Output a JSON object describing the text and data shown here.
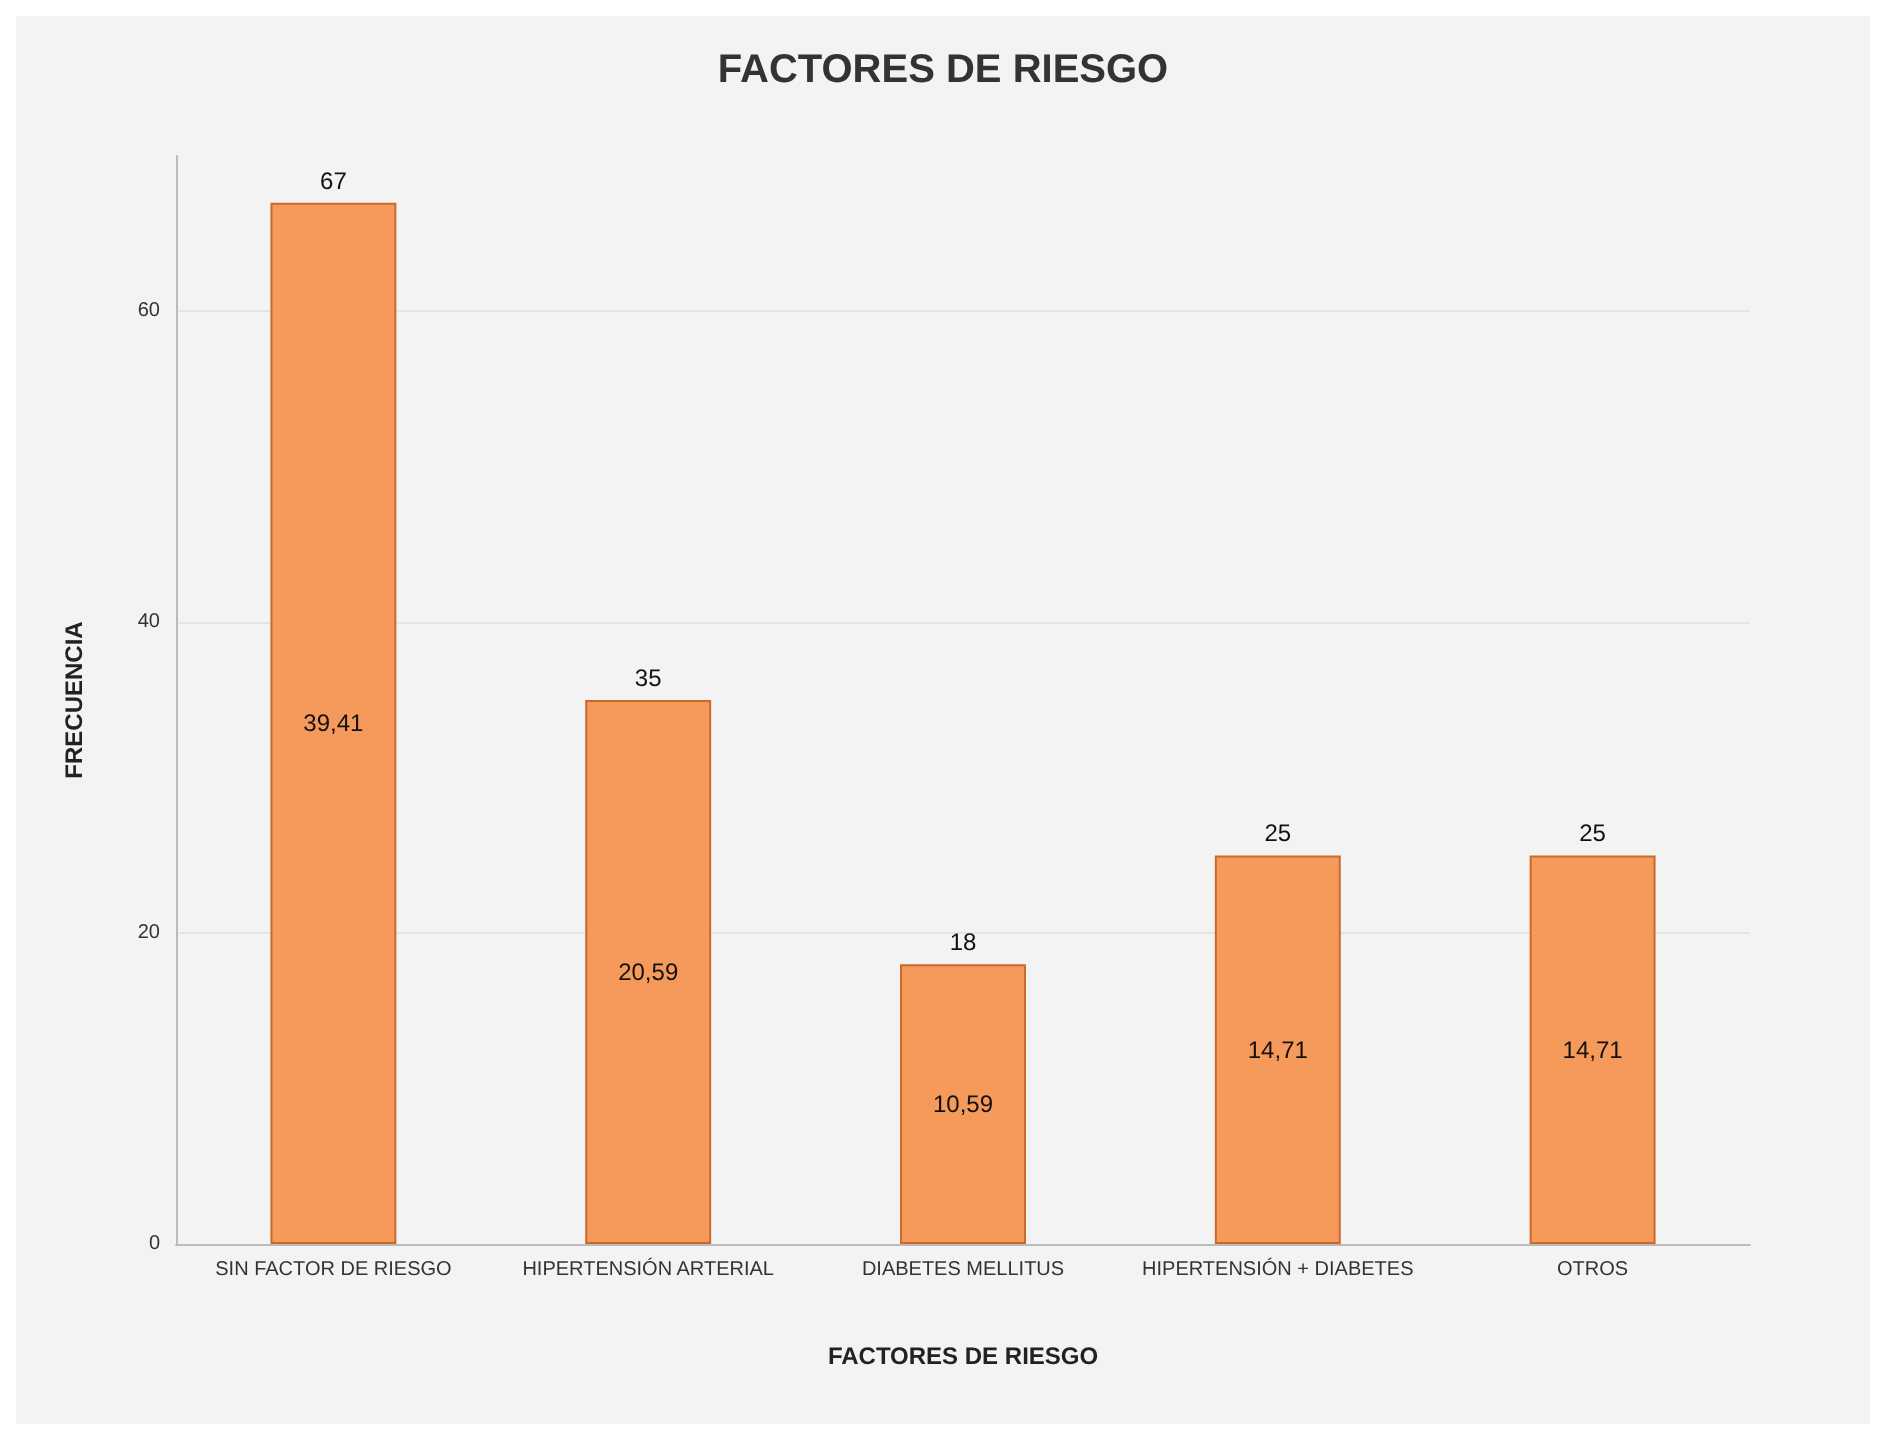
{
  "chart_data": {
    "type": "bar",
    "title": "FACTORES DE RIESGO",
    "xlabel": "FACTORES DE RIESGO",
    "ylabel": "FRECUENCIA",
    "categories": [
      "SIN FACTOR DE RIESGO",
      "HIPERTENSIÓN ARTERIAL",
      "DIABETES MELLITUS",
      "HIPERTENSIÓN + DIABETES",
      "OTROS"
    ],
    "values": [
      67,
      35,
      18,
      25,
      25
    ],
    "color": "#f59a5a",
    "data_labels": true,
    "ylim": [
      0,
      70
    ],
    "yticks": [
      0,
      20,
      40,
      60
    ],
    "grid": "y",
    "annotations": [
      "39,41",
      "20,59",
      "10,59",
      "14,71",
      "14,71"
    ]
  }
}
